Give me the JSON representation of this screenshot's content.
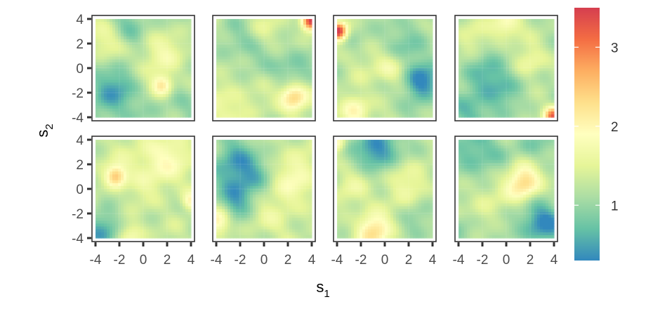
{
  "chart_data": {
    "type": "heatmap",
    "layout": {
      "rows": 2,
      "cols": 4
    },
    "xlabel": {
      "base": "s",
      "sub": "1"
    },
    "ylabel": {
      "base": "s",
      "sub": "2"
    },
    "xticks": [
      "-4",
      "-2",
      "0",
      "2",
      "4"
    ],
    "yticks": [
      "4",
      "2",
      "0",
      "-2",
      "-4"
    ],
    "xlim": [
      -4,
      4
    ],
    "ylim": [
      -4,
      4
    ],
    "colorbar": {
      "ticks": [
        "3",
        "2",
        "1"
      ],
      "tick_values": [
        3,
        2,
        1
      ],
      "range": [
        0.3,
        3.5
      ],
      "colors": [
        "#3288bd",
        "#66c2a5",
        "#abdda4",
        "#e6f598",
        "#ffffbf",
        "#fee08b",
        "#fdae61",
        "#f46d43",
        "#d53e4f"
      ]
    },
    "panels": [
      {
        "base": 1.15,
        "seed": 11,
        "features": [
          {
            "x": -3.2,
            "y": 2.5,
            "s": 1.2,
            "a": 0.55
          },
          {
            "x": 1.2,
            "y": 1.2,
            "s": 1.5,
            "a": 0.55
          },
          {
            "x": 1.6,
            "y": -1.4,
            "s": 0.6,
            "a": 1.0
          },
          {
            "x": -2.5,
            "y": -2.0,
            "s": 1.6,
            "a": -0.6
          },
          {
            "x": -1.0,
            "y": 3.2,
            "s": 1.2,
            "a": -0.5
          },
          {
            "x": 3.5,
            "y": -3.5,
            "s": 1.2,
            "a": -0.2
          }
        ]
      },
      {
        "base": 1.25,
        "seed": 23,
        "features": [
          {
            "x": 3.9,
            "y": 3.8,
            "s": 0.5,
            "a": 2.3
          },
          {
            "x": 2.5,
            "y": -2.3,
            "s": 0.8,
            "a": 1.3
          },
          {
            "x": -1.5,
            "y": 2.0,
            "s": 1.5,
            "a": -0.4
          },
          {
            "x": 2.5,
            "y": 0.0,
            "s": 1.2,
            "a": -0.5
          },
          {
            "x": -3.0,
            "y": -3.0,
            "s": 1.3,
            "a": 0.4
          },
          {
            "x": 0.0,
            "y": 3.0,
            "s": 1.2,
            "a": 0.3
          }
        ]
      },
      {
        "base": 1.15,
        "seed": 37,
        "features": [
          {
            "x": -3.9,
            "y": 3.0,
            "s": 0.5,
            "a": 2.5
          },
          {
            "x": 3.0,
            "y": -1.0,
            "s": 1.0,
            "a": -1.0
          },
          {
            "x": -2.5,
            "y": -3.5,
            "s": 0.9,
            "a": 0.9
          },
          {
            "x": 0.5,
            "y": 0.0,
            "s": 1.0,
            "a": 0.7
          },
          {
            "x": 1.0,
            "y": 1.5,
            "s": 1.3,
            "a": -0.4
          },
          {
            "x": -1.5,
            "y": 0.5,
            "s": 1.3,
            "a": 0.2
          }
        ]
      },
      {
        "base": 1.15,
        "seed": 41,
        "features": [
          {
            "x": 3.9,
            "y": -3.9,
            "s": 0.5,
            "a": 2.0
          },
          {
            "x": 0.0,
            "y": 3.5,
            "s": 0.9,
            "a": 0.8
          },
          {
            "x": 2.0,
            "y": 0.5,
            "s": 1.0,
            "a": 0.6
          },
          {
            "x": -1.0,
            "y": -1.0,
            "s": 1.5,
            "a": -0.6
          },
          {
            "x": -3.0,
            "y": -3.5,
            "s": 1.0,
            "a": -0.5
          },
          {
            "x": -3.0,
            "y": 2.5,
            "s": 1.2,
            "a": 0.3
          }
        ]
      },
      {
        "base": 1.25,
        "seed": 53,
        "features": [
          {
            "x": -2.3,
            "y": 1.0,
            "s": 0.6,
            "a": 1.2
          },
          {
            "x": -3.3,
            "y": -3.5,
            "s": 1.1,
            "a": -0.8
          },
          {
            "x": 0.5,
            "y": 2.0,
            "s": 1.8,
            "a": 0.4
          },
          {
            "x": 4.0,
            "y": -1.0,
            "s": 0.5,
            "a": 0.7
          },
          {
            "x": -1.0,
            "y": -3.8,
            "s": 0.8,
            "a": 0.6
          },
          {
            "x": 2.5,
            "y": 2.5,
            "s": 1.5,
            "a": 0.3
          }
        ]
      },
      {
        "base": 1.2,
        "seed": 67,
        "features": [
          {
            "x": -2.0,
            "y": 1.5,
            "s": 1.5,
            "a": -0.9
          },
          {
            "x": -3.8,
            "y": -2.5,
            "s": 0.7,
            "a": 1.0
          },
          {
            "x": 2.5,
            "y": 0.5,
            "s": 1.5,
            "a": 0.5
          },
          {
            "x": 1.0,
            "y": -2.5,
            "s": 1.3,
            "a": 0.3
          },
          {
            "x": -2.5,
            "y": -1.0,
            "s": 1.0,
            "a": -0.5
          },
          {
            "x": 3.0,
            "y": 3.0,
            "s": 1.3,
            "a": 0.2
          }
        ]
      },
      {
        "base": 1.2,
        "seed": 79,
        "features": [
          {
            "x": -0.5,
            "y": 3.2,
            "s": 1.2,
            "a": -1.0
          },
          {
            "x": -1.0,
            "y": -3.5,
            "s": 1.0,
            "a": 1.1
          },
          {
            "x": 1.5,
            "y": 0.5,
            "s": 1.5,
            "a": 0.4
          },
          {
            "x": -4.0,
            "y": 3.8,
            "s": 0.5,
            "a": 0.8
          },
          {
            "x": 3.0,
            "y": -2.5,
            "s": 1.2,
            "a": -0.2
          },
          {
            "x": -3.0,
            "y": 0.0,
            "s": 1.2,
            "a": 0.3
          }
        ]
      },
      {
        "base": 1.2,
        "seed": 97,
        "features": [
          {
            "x": 1.5,
            "y": 0.5,
            "s": 1.0,
            "a": 1.2
          },
          {
            "x": 3.0,
            "y": -2.8,
            "s": 1.2,
            "a": -1.0
          },
          {
            "x": -2.5,
            "y": 3.0,
            "s": 1.4,
            "a": -0.6
          },
          {
            "x": -2.0,
            "y": -1.0,
            "s": 1.2,
            "a": 0.3
          },
          {
            "x": 2.5,
            "y": 3.5,
            "s": 1.0,
            "a": -0.4
          },
          {
            "x": -3.5,
            "y": -3.5,
            "s": 1.0,
            "a": -0.3
          }
        ]
      }
    ]
  }
}
